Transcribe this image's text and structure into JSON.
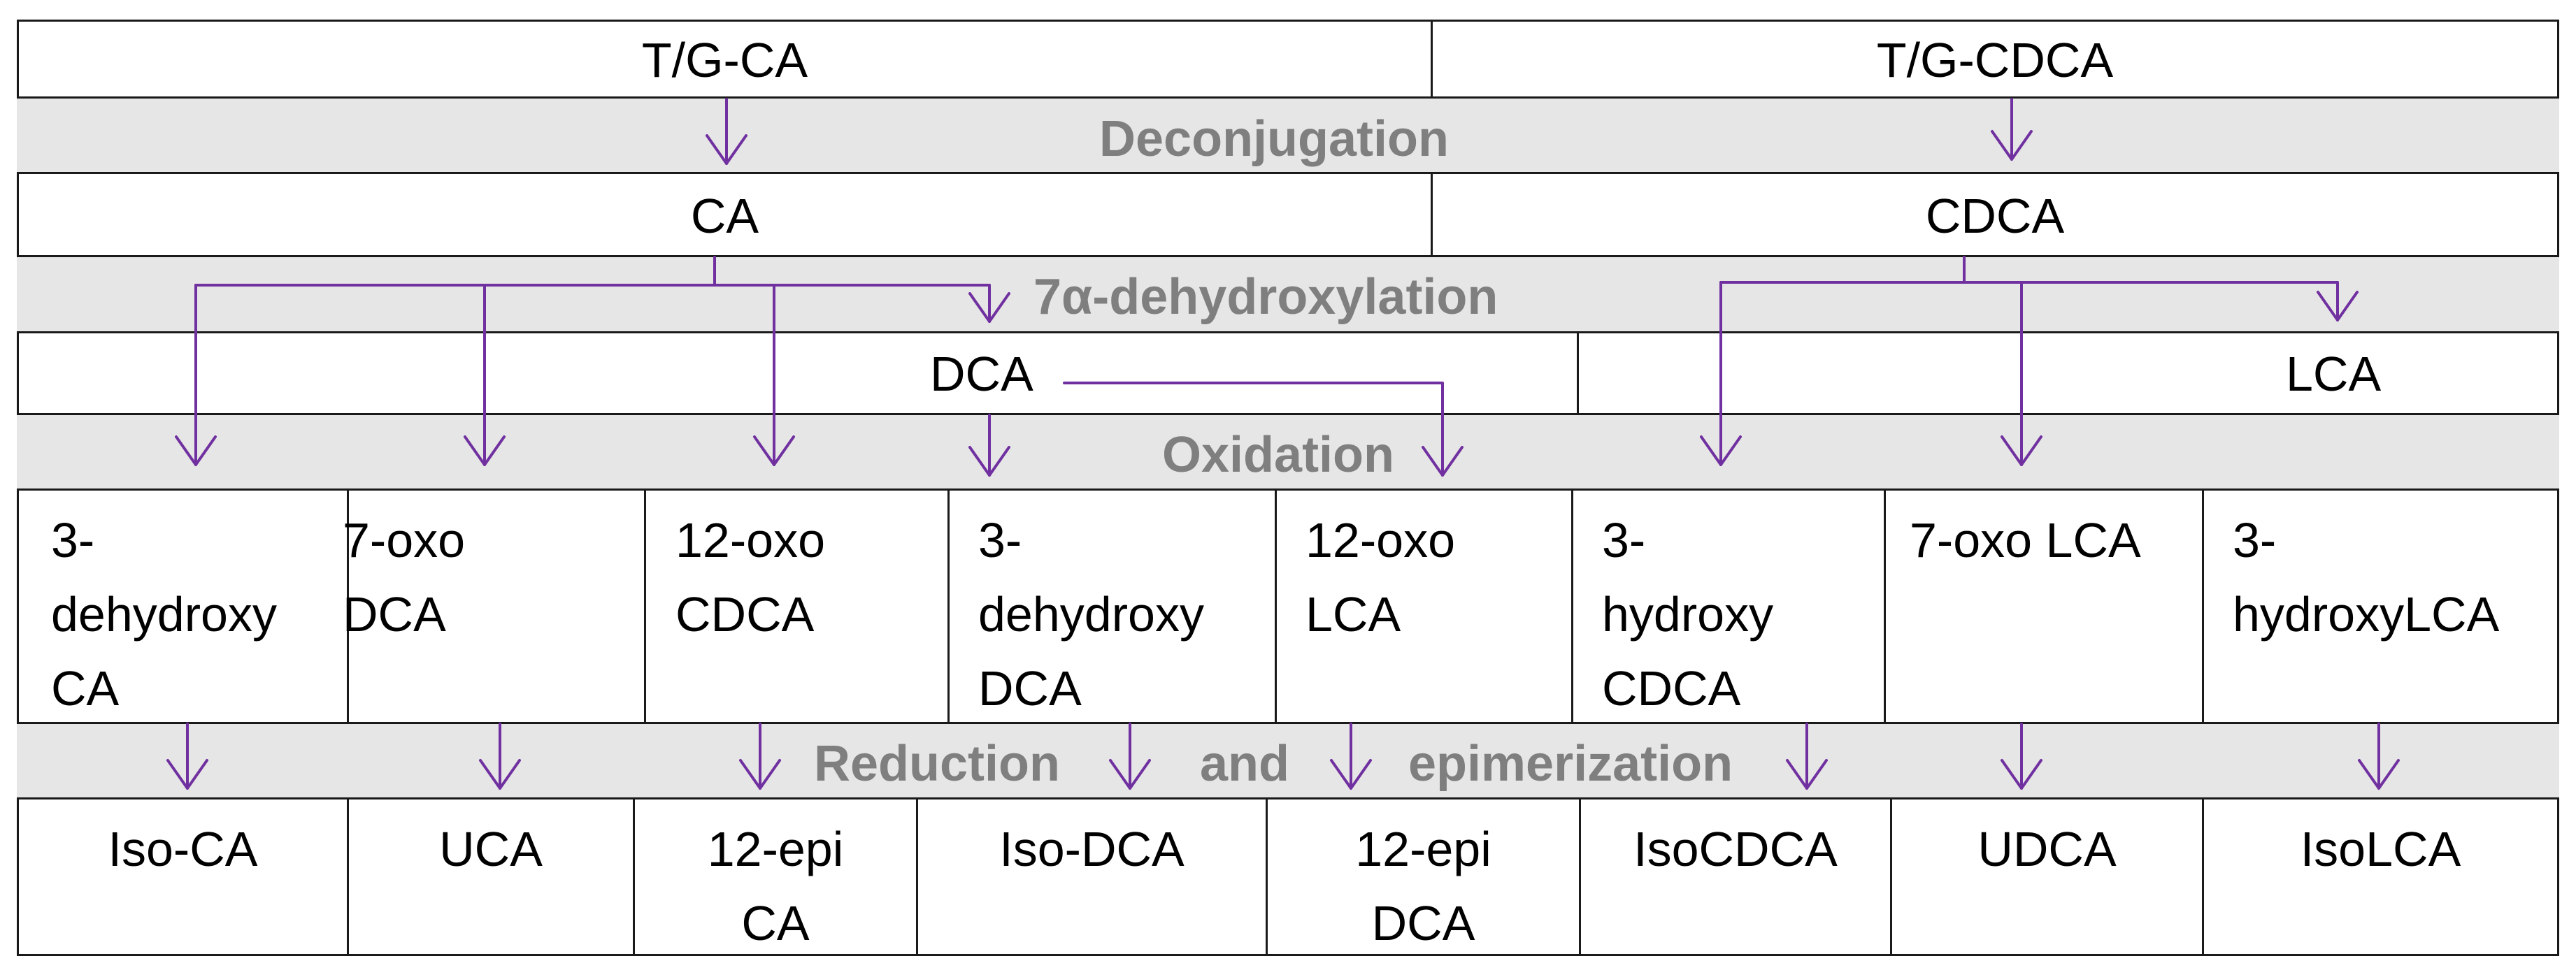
{
  "conjugated": {
    "left": "T/G-CA",
    "right": "T/G-CDCA"
  },
  "stages": {
    "deconjugation": "Deconjugation",
    "dehydroxylation": "7α-dehydroxylation",
    "oxidation": "Oxidation",
    "reduction_word": "Reduction",
    "and_word": "and",
    "epimerization_word": "epimerization"
  },
  "primary": {
    "left": "CA",
    "right": "CDCA"
  },
  "secondary": {
    "left": "DCA",
    "right": "LCA"
  },
  "oxidation_products": [
    "3-\ndehydroxy\nCA",
    "7-oxo\nDCA",
    "12-oxo\nCDCA",
    "3-\ndehydroxy\nDCA",
    "12-oxo\nLCA",
    "3-\nhydroxy\nCDCA",
    "7-oxo LCA",
    "3-\nhydroxyLCA"
  ],
  "reduction_products": [
    "Iso-CA",
    "UCA",
    "12-epi\nCA",
    "Iso-DCA",
    "12-epi\nDCA",
    "IsoCDCA",
    "UDCA",
    "IsoLCA"
  ],
  "colors": {
    "arrow": "#7030a0",
    "band": "#e6e6e6",
    "band_text": "#7f7f7f",
    "border": "#1a1a1a"
  }
}
